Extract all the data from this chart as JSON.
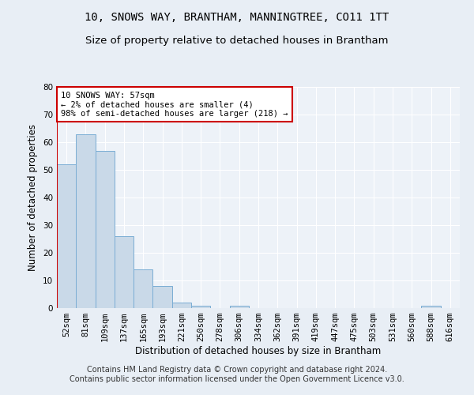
{
  "title": "10, SNOWS WAY, BRANTHAM, MANNINGTREE, CO11 1TT",
  "subtitle": "Size of property relative to detached houses in Brantham",
  "xlabel": "Distribution of detached houses by size in Brantham",
  "ylabel": "Number of detached properties",
  "categories": [
    "52sqm",
    "81sqm",
    "109sqm",
    "137sqm",
    "165sqm",
    "193sqm",
    "221sqm",
    "250sqm",
    "278sqm",
    "306sqm",
    "334sqm",
    "362sqm",
    "391sqm",
    "419sqm",
    "447sqm",
    "475sqm",
    "503sqm",
    "531sqm",
    "560sqm",
    "588sqm",
    "616sqm"
  ],
  "values": [
    52,
    63,
    57,
    26,
    14,
    8,
    2,
    1,
    0,
    1,
    0,
    0,
    0,
    0,
    0,
    0,
    0,
    0,
    0,
    1,
    0
  ],
  "bar_color": "#c9d9e8",
  "bar_edge_color": "#7aadd4",
  "highlight_edge_color": "#cc0000",
  "annotation_line1": "10 SNOWS WAY: 57sqm",
  "annotation_line2": "← 2% of detached houses are smaller (4)",
  "annotation_line3": "98% of semi-detached houses are larger (218) →",
  "annotation_box_edge_color": "#cc0000",
  "ylim": [
    0,
    80
  ],
  "yticks": [
    0,
    10,
    20,
    30,
    40,
    50,
    60,
    70,
    80
  ],
  "footer_line1": "Contains HM Land Registry data © Crown copyright and database right 2024.",
  "footer_line2": "Contains public sector information licensed under the Open Government Licence v3.0.",
  "title_fontsize": 10,
  "subtitle_fontsize": 9.5,
  "axis_label_fontsize": 8.5,
  "tick_fontsize": 7.5,
  "footer_fontsize": 7,
  "annotation_fontsize": 7.5,
  "bg_color": "#e8eef5",
  "plot_bg_color": "#edf2f8",
  "grid_color": "#ffffff"
}
